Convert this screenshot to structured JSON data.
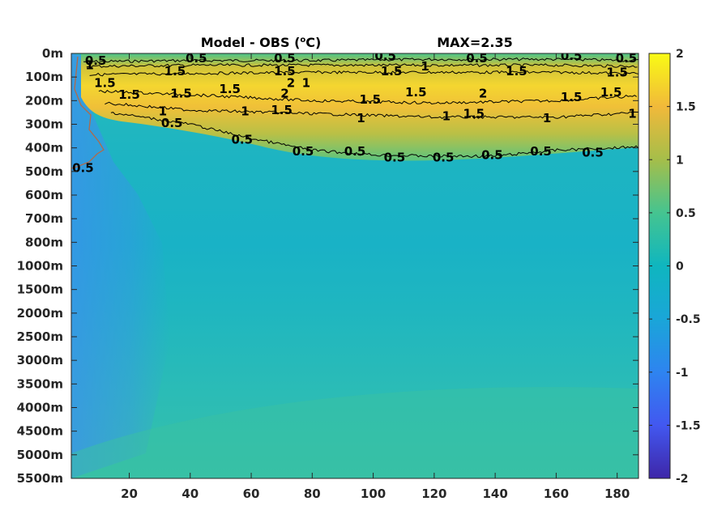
{
  "chart_data": {
    "type": "heatmap",
    "title_left": "Model - OBS (",
    "title_sup": "o",
    "title_unit": "C)",
    "title_right": "MAX=2.35",
    "x_ticks": [
      20,
      40,
      60,
      80,
      100,
      120,
      140,
      160,
      180
    ],
    "xlim": [
      1,
      187
    ],
    "y_tick_labels": [
      "0m",
      "100m",
      "200m",
      "300m",
      "400m",
      "500m",
      "600m",
      "700m",
      "800m",
      "1000m",
      "1500m",
      "2000m",
      "2500m",
      "3000m",
      "3500m",
      "4000m",
      "4500m",
      "5000m",
      "5500m"
    ],
    "colorbar": {
      "min": -2,
      "max": 2,
      "ticks": [
        2,
        1.5,
        1,
        0.5,
        0,
        -0.5,
        -1,
        -1.5,
        -2
      ]
    },
    "contour_levels": [
      0.5,
      1,
      1.5,
      2
    ],
    "surface_band": {
      "level_1_5_depth_range": [
        "100m",
        "250m"
      ],
      "level_0_5_bottom_depth_at_x": [
        [
          1,
          "150m"
        ],
        [
          20,
          "260m"
        ],
        [
          60,
          "380m"
        ],
        [
          100,
          "450m"
        ],
        [
          140,
          "450m"
        ],
        [
          187,
          "400m"
        ]
      ]
    },
    "contour_labels": [
      {
        "text": "0.5",
        "x": 9,
        "depth_index": 0.3
      },
      {
        "text": "0.5",
        "x": 42,
        "depth_index": 0.2
      },
      {
        "text": "0.5",
        "x": 71,
        "depth_index": 0.2
      },
      {
        "text": "0.5",
        "x": 104,
        "depth_index": 0.1
      },
      {
        "text": "0.5",
        "x": 134,
        "depth_index": 0.2
      },
      {
        "text": "0.5",
        "x": 165,
        "depth_index": 0.1
      },
      {
        "text": "0.5",
        "x": 183,
        "depth_index": 0.2
      },
      {
        "text": "1",
        "x": 7,
        "depth_index": 0.5
      },
      {
        "text": "1.5",
        "x": 35,
        "depth_index": 0.75
      },
      {
        "text": "1.5",
        "x": 71,
        "depth_index": 0.75
      },
      {
        "text": "1.5",
        "x": 106,
        "depth_index": 0.75
      },
      {
        "text": "1",
        "x": 117,
        "depth_index": 0.55
      },
      {
        "text": "1.5",
        "x": 147,
        "depth_index": 0.75
      },
      {
        "text": "1.5",
        "x": 180,
        "depth_index": 0.8
      },
      {
        "text": "1.5",
        "x": 12,
        "depth_index": 1.25
      },
      {
        "text": "1.5",
        "x": 20,
        "depth_index": 1.75
      },
      {
        "text": "1.5",
        "x": 37,
        "depth_index": 1.7
      },
      {
        "text": "1.5",
        "x": 53,
        "depth_index": 1.5
      },
      {
        "text": "2",
        "x": 73,
        "depth_index": 1.25
      },
      {
        "text": "1",
        "x": 78,
        "depth_index": 1.25
      },
      {
        "text": "2",
        "x": 71,
        "depth_index": 1.7
      },
      {
        "text": "1.5",
        "x": 99,
        "depth_index": 1.95
      },
      {
        "text": "1.5",
        "x": 114,
        "depth_index": 1.65
      },
      {
        "text": "2",
        "x": 136,
        "depth_index": 1.7
      },
      {
        "text": "1.5",
        "x": 165,
        "depth_index": 1.85
      },
      {
        "text": "1.5",
        "x": 178,
        "depth_index": 1.65
      },
      {
        "text": "1",
        "x": 31,
        "depth_index": 2.45
      },
      {
        "text": "1",
        "x": 58,
        "depth_index": 2.45
      },
      {
        "text": "1.5",
        "x": 70,
        "depth_index": 2.4
      },
      {
        "text": "1",
        "x": 96,
        "depth_index": 2.75
      },
      {
        "text": "1",
        "x": 124,
        "depth_index": 2.65
      },
      {
        "text": "1.5",
        "x": 133,
        "depth_index": 2.55
      },
      {
        "text": "1",
        "x": 157,
        "depth_index": 2.75
      },
      {
        "text": "1",
        "x": 185,
        "depth_index": 2.55
      },
      {
        "text": "0.5",
        "x": 34,
        "depth_index": 2.95
      },
      {
        "text": "0.5",
        "x": 57,
        "depth_index": 3.65
      },
      {
        "text": "0.5",
        "x": 77,
        "depth_index": 4.15
      },
      {
        "text": "0.5",
        "x": 94,
        "depth_index": 4.15
      },
      {
        "text": "0.5",
        "x": 107,
        "depth_index": 4.4
      },
      {
        "text": "0.5",
        "x": 123,
        "depth_index": 4.4
      },
      {
        "text": "0.5",
        "x": 139,
        "depth_index": 4.3
      },
      {
        "text": "0.5",
        "x": 155,
        "depth_index": 4.15
      },
      {
        "text": "0.5",
        "x": 172,
        "depth_index": 4.2
      },
      {
        "text": "-0.5",
        "x": 4,
        "depth_index": 4.85
      }
    ]
  }
}
